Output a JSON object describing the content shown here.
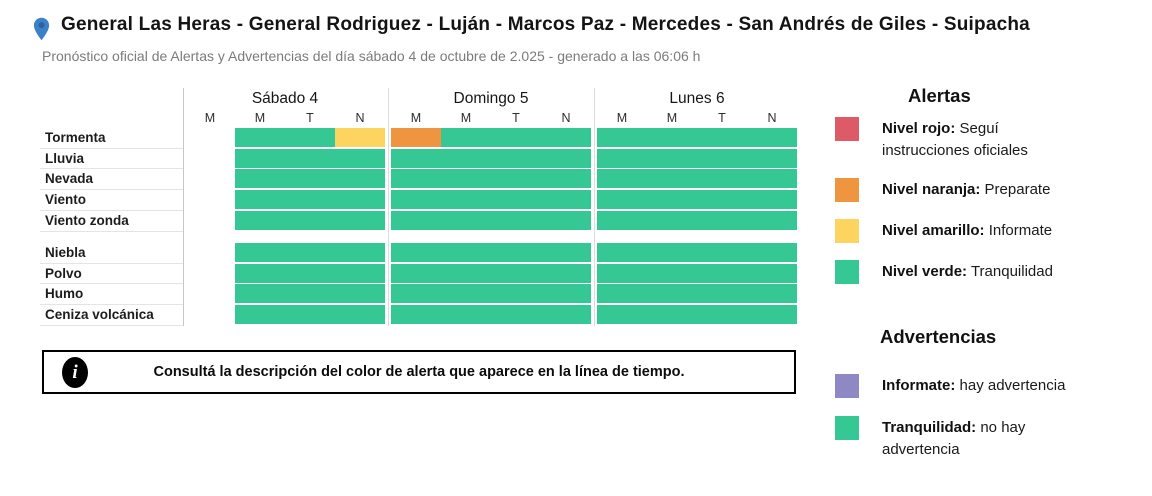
{
  "colors": {
    "green": "#35c794",
    "yellow": "#fcd45f",
    "orange": "#f0953f",
    "red": "#dd5a67",
    "purple": "#8e89c4",
    "pin_blue": "#3c80c8"
  },
  "header": {
    "title": "General Las Heras - General Rodriguez - Luján - Marcos Paz - Mercedes - San Andrés de Giles - Suipacha",
    "subtitle": "Pronóstico oficial de Alertas y Advertencias del día sábado 4 de octubre de 2.025 - generado a las 06:06 h"
  },
  "timeline": {
    "days": [
      {
        "label": "Sábado 4",
        "periods": [
          "M",
          "M",
          "T",
          "N"
        ]
      },
      {
        "label": "Domingo 5",
        "periods": [
          "M",
          "M",
          "T",
          "N"
        ]
      },
      {
        "label": "Lunes 6",
        "periods": [
          "M",
          "M",
          "T",
          "N"
        ]
      }
    ],
    "groups": [
      {
        "name": "alertas",
        "rows": [
          {
            "label": "Tormenta",
            "cells": [
              "none",
              "green",
              "green",
              "yellow",
              "orange",
              "green",
              "green",
              "green",
              "green",
              "green",
              "green",
              "green"
            ]
          },
          {
            "label": "Lluvia",
            "cells": [
              "none",
              "green",
              "green",
              "green",
              "green",
              "green",
              "green",
              "green",
              "green",
              "green",
              "green",
              "green"
            ]
          },
          {
            "label": "Nevada",
            "cells": [
              "none",
              "green",
              "green",
              "green",
              "green",
              "green",
              "green",
              "green",
              "green",
              "green",
              "green",
              "green"
            ]
          },
          {
            "label": "Viento",
            "cells": [
              "none",
              "green",
              "green",
              "green",
              "green",
              "green",
              "green",
              "green",
              "green",
              "green",
              "green",
              "green"
            ]
          },
          {
            "label": "Viento zonda",
            "cells": [
              "none",
              "green",
              "green",
              "green",
              "green",
              "green",
              "green",
              "green",
              "green",
              "green",
              "green",
              "green"
            ]
          }
        ]
      },
      {
        "name": "advertencias",
        "rows": [
          {
            "label": "Niebla",
            "cells": [
              "none",
              "green",
              "green",
              "green",
              "green",
              "green",
              "green",
              "green",
              "green",
              "green",
              "green",
              "green"
            ]
          },
          {
            "label": "Polvo",
            "cells": [
              "none",
              "green",
              "green",
              "green",
              "green",
              "green",
              "green",
              "green",
              "green",
              "green",
              "green",
              "green"
            ]
          },
          {
            "label": "Humo",
            "cells": [
              "none",
              "green",
              "green",
              "green",
              "green",
              "green",
              "green",
              "green",
              "green",
              "green",
              "green",
              "green"
            ]
          },
          {
            "label": "Ceniza volcánica",
            "cells": [
              "none",
              "green",
              "green",
              "green",
              "green",
              "green",
              "green",
              "green",
              "green",
              "green",
              "green",
              "green"
            ]
          }
        ]
      }
    ]
  },
  "notice": {
    "icon": "info-icon",
    "icon_glyph": "i",
    "text": "Consultá la descripción del color de alerta que aparece en la línea de tiempo."
  },
  "legend": {
    "alertas_heading": "Alertas",
    "alertas_items": [
      {
        "color_key": "red",
        "label": "Nivel rojo:",
        "desc": "Seguí instrucciones oficiales"
      },
      {
        "color_key": "orange",
        "label": "Nivel naranja:",
        "desc": "Preparate"
      },
      {
        "color_key": "yellow",
        "label": "Nivel amarillo:",
        "desc": "Informate"
      },
      {
        "color_key": "green",
        "label": "Nivel verde:",
        "desc": "Tranquilidad"
      }
    ],
    "advertencias_heading": "Advertencias",
    "advertencias_items": [
      {
        "color_key": "purple",
        "label": "Informate:",
        "desc": "hay advertencia"
      },
      {
        "color_key": "green",
        "label": "Tranquilidad:",
        "desc": "no hay advertencia"
      }
    ]
  }
}
